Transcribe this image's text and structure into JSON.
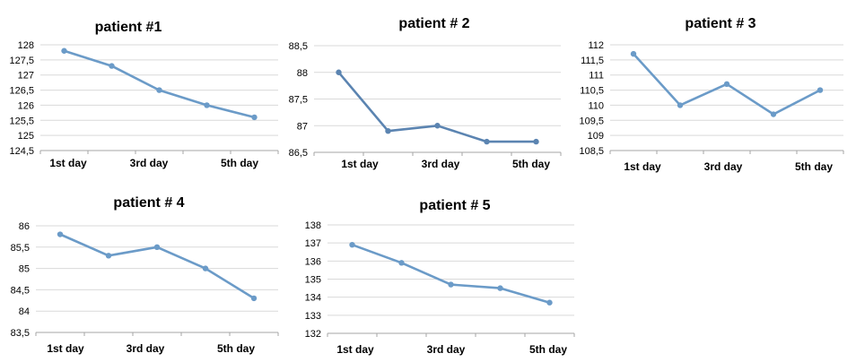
{
  "chart_data": [
    {
      "type": "line",
      "title": "patient #1",
      "categories": [
        "1st day",
        "",
        "3rd day",
        "",
        "5th day"
      ],
      "x_tick_labels": [
        "1st day",
        "3rd day",
        "5th day"
      ],
      "ylim": [
        124.5,
        128
      ],
      "y_ticks": [
        "124,5",
        "125",
        "125,5",
        "126",
        "126,5",
        "127",
        "127,5",
        "128"
      ],
      "series": [
        {
          "values": [
            127.8,
            127.3,
            126.5,
            126.0,
            125.6
          ]
        }
      ],
      "color": "#6b9bc8",
      "grid": true
    },
    {
      "type": "line",
      "title": "patient # 2",
      "categories": [
        "1st day",
        "",
        "3rd day",
        "",
        "5th day"
      ],
      "x_tick_labels": [
        "1st day",
        "3rd day",
        "5th day"
      ],
      "ylim": [
        86.5,
        88.5
      ],
      "y_ticks": [
        "86,5",
        "87",
        "87,5",
        "88",
        "88,5"
      ],
      "series": [
        {
          "values": [
            88.0,
            86.9,
            87.0,
            86.7,
            86.7
          ]
        }
      ],
      "color": "#5b84b1",
      "grid": true
    },
    {
      "type": "line",
      "title": "patient # 3",
      "categories": [
        "1st day",
        "",
        "3rd day",
        "",
        "5th day"
      ],
      "x_tick_labels": [
        "1st day",
        "3rd day",
        "5th day"
      ],
      "ylim": [
        108.5,
        112
      ],
      "y_ticks": [
        "108,5",
        "109",
        "109,5",
        "110",
        "110,5",
        "111",
        "111,5",
        "112"
      ],
      "series": [
        {
          "values": [
            111.7,
            110.0,
            110.7,
            109.7,
            110.5
          ]
        }
      ],
      "color": "#6b9bc8",
      "grid": true
    },
    {
      "type": "line",
      "title": "patient # 4",
      "categories": [
        "1st day",
        "",
        "3rd day",
        "",
        "5th day"
      ],
      "x_tick_labels": [
        "1st day",
        "3rd day",
        "5th day"
      ],
      "ylim": [
        83.5,
        86
      ],
      "y_ticks": [
        "83,5",
        "84",
        "84,5",
        "85",
        "85,5",
        "86"
      ],
      "series": [
        {
          "values": [
            85.8,
            85.3,
            85.5,
            85.0,
            84.3
          ]
        }
      ],
      "color": "#6b9bc8",
      "grid": true
    },
    {
      "type": "line",
      "title": "patient # 5",
      "categories": [
        "1st day",
        "",
        "3rd day",
        "",
        "5th day"
      ],
      "x_tick_labels": [
        "1st day",
        "3rd day",
        "5th day"
      ],
      "ylim": [
        132,
        138
      ],
      "y_ticks": [
        "132",
        "133",
        "134",
        "135",
        "136",
        "137",
        "138"
      ],
      "series": [
        {
          "values": [
            136.9,
            135.9,
            134.7,
            134.5,
            133.7
          ]
        }
      ],
      "color": "#6b9bc8",
      "grid": true
    }
  ]
}
